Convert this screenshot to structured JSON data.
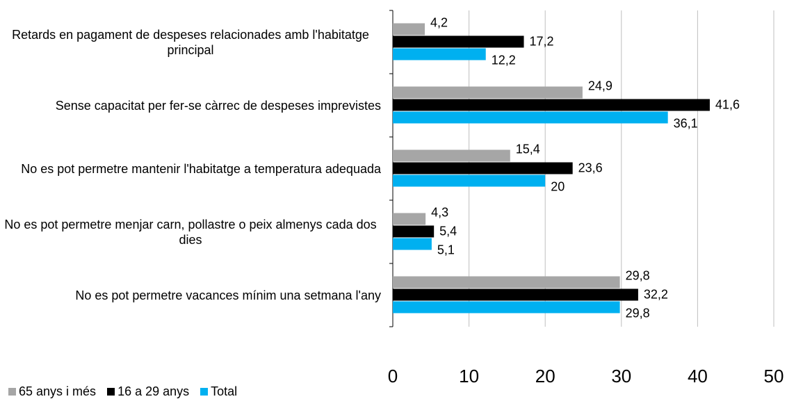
{
  "chart_data": {
    "type": "bar",
    "orientation": "horizontal",
    "categories": [
      "Retards en pagament de despeses relacionades amb l'habitatge principal",
      "Sense capacitat per fer-se càrrec de despeses imprevistes",
      "No es pot permetre mantenir l'habitatge a temperatura adequada",
      "No es pot permetre menjar carn, pollastre o peix almenys cada dos dies",
      "No es pot permetre vacances mínim una setmana l'any"
    ],
    "series": [
      {
        "name": "65 anys i més",
        "color": "#a6a6a6",
        "values": [
          4.2,
          24.9,
          15.4,
          4.3,
          29.8
        ],
        "value_labels": [
          "4,2",
          "24,9",
          "15,4",
          "4,3",
          "29,8"
        ]
      },
      {
        "name": "16 a 29 anys",
        "color": "#000000",
        "values": [
          17.2,
          41.6,
          23.6,
          5.4,
          32.2
        ],
        "value_labels": [
          "17,2",
          "41,6",
          "23,6",
          "5,4",
          "32,2"
        ]
      },
      {
        "name": "Total",
        "color": "#00b0f0",
        "values": [
          12.2,
          36.1,
          20,
          5.1,
          29.8
        ],
        "value_labels": [
          "12,2",
          "36,1",
          "20",
          "5,1",
          "29,8"
        ]
      }
    ],
    "xlim": [
      0,
      50
    ],
    "xticks": [
      0,
      10,
      20,
      30,
      40,
      50
    ],
    "grid": true,
    "legend": "bottom-left"
  }
}
